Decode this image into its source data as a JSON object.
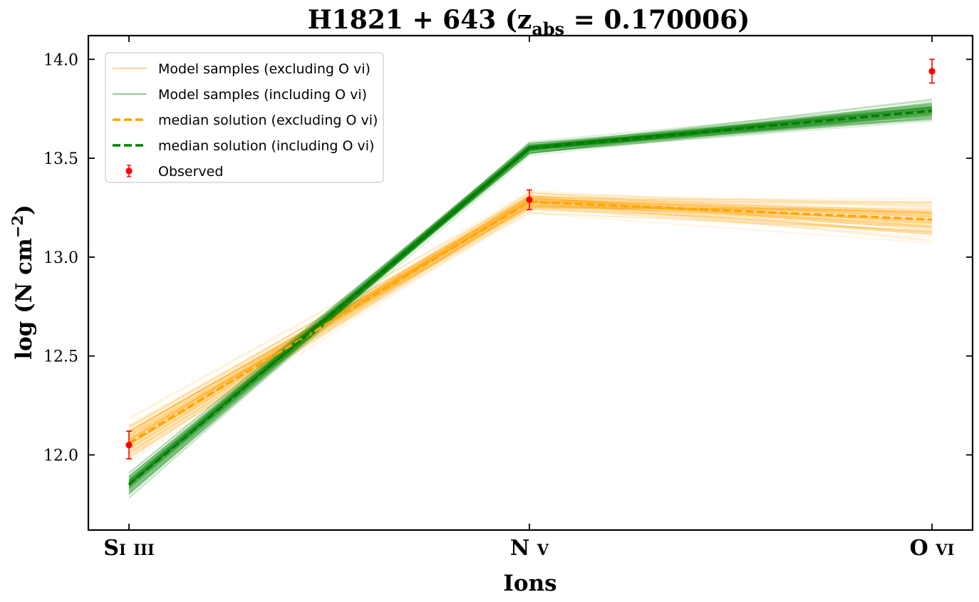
{
  "chart_data": {
    "type": "line",
    "title": "H1821 + 643 (z",
    "title_sub": "abs",
    "title_tail": " = 0.170006)",
    "xlabel": "Ions",
    "ylabel": "log (N cm",
    "ylabel_sup": "−2",
    "ylabel_tail": ")",
    "categories": [
      "Si iii",
      "N v",
      "O vi"
    ],
    "ylim": [
      11.62,
      14.12
    ],
    "yticks": [
      "12.0",
      "12.5",
      "13.0",
      "13.5",
      "14.0"
    ],
    "grid": false,
    "legend_position": "top-left",
    "legend": [
      {
        "label": "Model samples (excluding O vi)",
        "style": "thin",
        "color": "#f5c86a"
      },
      {
        "label": "Model samples (including O vi)",
        "style": "thin",
        "color": "#6cbf6c"
      },
      {
        "label": "median solution (excluding O vi)",
        "style": "dashed",
        "color": "#ffa500"
      },
      {
        "label": "median solution (including O vi)",
        "style": "dashed",
        "color": "#007d00"
      },
      {
        "label": "Observed",
        "style": "errorbar",
        "color": "#ff0000"
      }
    ],
    "series": [
      {
        "name": "median solution (excluding O vi)",
        "color": "#ffa500",
        "values": [
          12.06,
          13.28,
          13.19
        ]
      },
      {
        "name": "median solution (including O vi)",
        "color": "#007d00",
        "values": [
          11.85,
          13.55,
          13.74
        ]
      },
      {
        "name": "Observed",
        "color": "#ff0000",
        "values": [
          12.05,
          13.29,
          13.94
        ],
        "errors": [
          0.07,
          0.05,
          0.06
        ]
      }
    ],
    "sample_bands": [
      {
        "group": "excluding O vi",
        "color": "#ffa500",
        "spread": [
          0.09,
          0.04,
          0.08
        ]
      },
      {
        "group": "including O vi",
        "color": "#008000",
        "spread": [
          0.05,
          0.025,
          0.04
        ]
      }
    ]
  }
}
